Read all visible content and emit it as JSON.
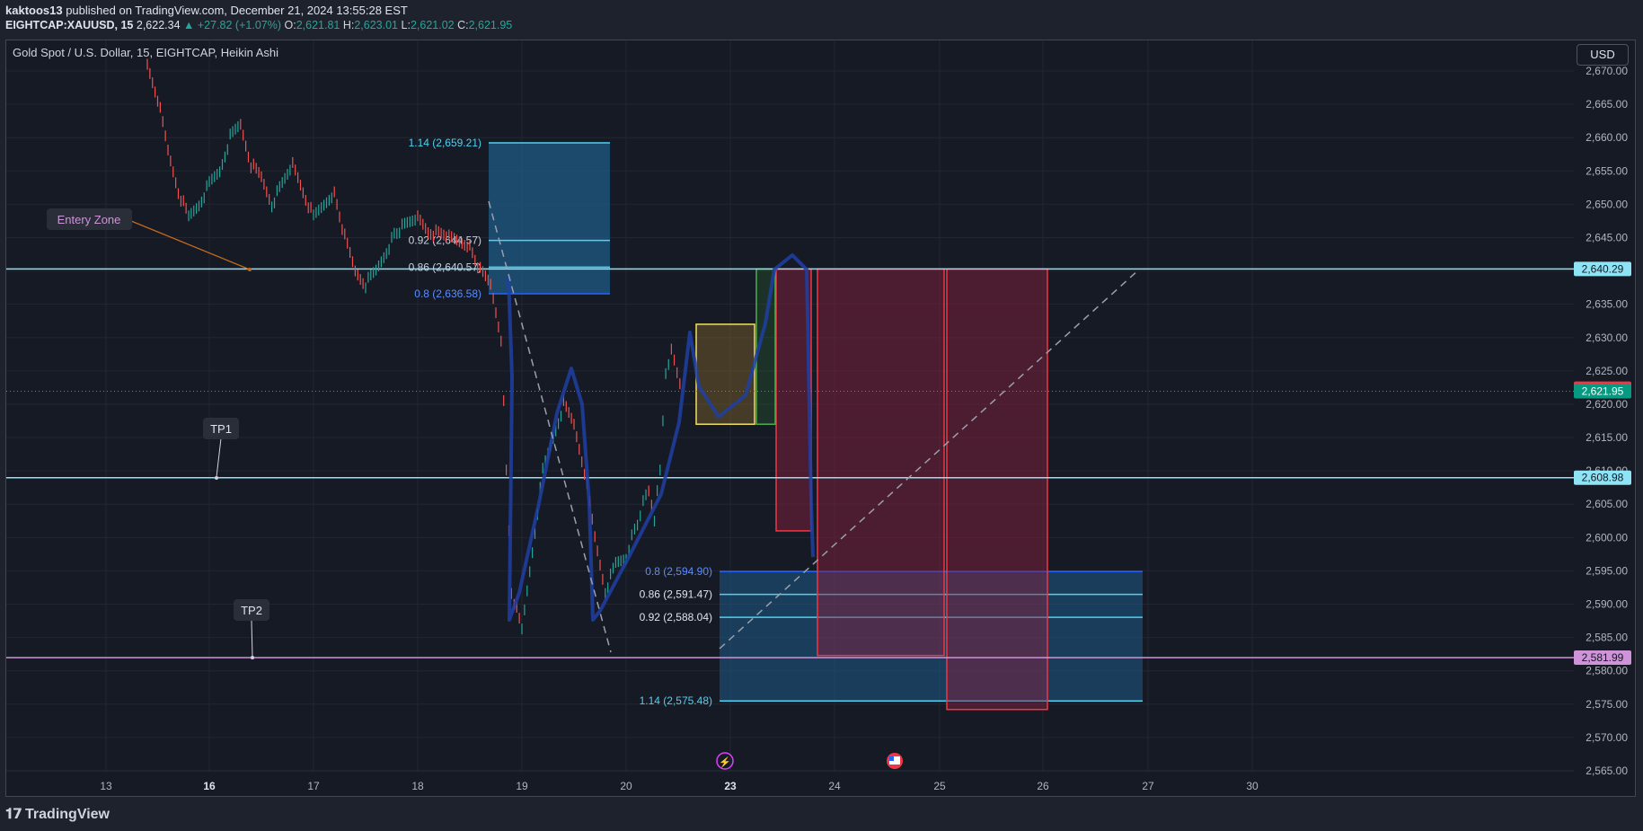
{
  "header": {
    "publisher_line": "kaktoos13 published on TradingView.com, December 21, 2024 13:55:28 EST",
    "publisher_name": "kaktoos13",
    "publisher_rest": " published on TradingView.com, December 21, 2024 13:55:28 EST",
    "symbol": "EIGHTCAP:XAUUSD, 15",
    "last": "2,622.34",
    "change": "▲ +27.82 (+1.07%)",
    "o_label": "O:",
    "o": "2,621.81",
    "h_label": "H:",
    "h": "2,623.01",
    "l_label": "L:",
    "l": "2,621.02",
    "c_label": "C:",
    "c": "2,621.95"
  },
  "pane_title": "Gold Spot / U.S. Dollar, 15, EIGHTCAP, Heikin Ashi",
  "currency_button": "USD",
  "brand": "TradingView",
  "colors": {
    "up": "#26a69a",
    "down": "#ef5350",
    "bg": "#161a25",
    "grid": "#232632",
    "hline": "#8ee3f5",
    "tp2line": "#ce93d8",
    "fibFill": "#1e5b86",
    "fibLine": "#4fd1f0",
    "fibBlue": "#2962ff",
    "redBox": "#f23645",
    "sketch": "#1e3fa3"
  },
  "chart_data": {
    "type": "candlestick",
    "style": "Heikin Ashi",
    "symbol": "XAUUSD",
    "timeframe": "15",
    "x_ticks": [
      "13",
      "16",
      "17",
      "18",
      "19",
      "20",
      "23",
      "24",
      "25",
      "26",
      "27",
      "30"
    ],
    "y_ticks": [
      "2,565.00",
      "2,570.00",
      "2,575.00",
      "2,580.00",
      "2,585.00",
      "2,590.00",
      "2,595.00",
      "2,600.00",
      "2,605.00",
      "2,610.00",
      "2,615.00",
      "2,620.00",
      "2,625.00",
      "2,630.00",
      "2,635.00",
      "2,640.00",
      "2,645.00",
      "2,650.00",
      "2,655.00",
      "2,660.00",
      "2,665.00",
      "2,670.00"
    ],
    "ylim": [
      2565,
      2671
    ],
    "grid": true,
    "price_badges": [
      {
        "price": 2640.29,
        "label": "2,640.29",
        "color": "#8ee3f5",
        "text": "#131722"
      },
      {
        "price": 2622.34,
        "label": "2,622.34",
        "color": "#f23645",
        "text": "#ffffff"
      },
      {
        "price": 2621.95,
        "label": "2,621.95",
        "color": "#089981",
        "text": "#ffffff"
      },
      {
        "price": 2608.98,
        "label": "2,608.98",
        "color": "#8ee3f5",
        "text": "#131722"
      },
      {
        "price": 2581.99,
        "label": "2,581.99",
        "color": "#ce93d8",
        "text": "#131722"
      }
    ],
    "horizontal_lines": [
      {
        "price": 2640.29,
        "color": "#8ee3f5"
      },
      {
        "price": 2608.98,
        "color": "#8ee3f5"
      },
      {
        "price": 2581.99,
        "color": "#ce93d8"
      }
    ],
    "fib_upper": [
      {
        "ratio": "1.14 (2,659.21)",
        "price": 2659.21
      },
      {
        "ratio": "0.92 (2,644.57)",
        "price": 2644.57
      },
      {
        "ratio": "0.86 (2,640.57)",
        "price": 2640.57
      },
      {
        "ratio": "0.8 (2,636.58)",
        "price": 2636.58
      }
    ],
    "fib_lower": [
      {
        "ratio": "0.8 (2,594.90)",
        "price": 2594.9
      },
      {
        "ratio": "0.86 (2,591.47)",
        "price": 2591.47
      },
      {
        "ratio": "0.92 (2,588.04)",
        "price": 2588.04
      },
      {
        "ratio": "1.14 (2,575.48)",
        "price": 2575.48
      }
    ],
    "annotations": [
      {
        "text": "Entery Zone",
        "price": 2640.29
      },
      {
        "text": "TP1",
        "price": 2608.98
      },
      {
        "text": "TP2",
        "price": 2581.99
      }
    ],
    "path": [
      [
        "13.4",
        2671
      ],
      [
        "13.5",
        2666
      ],
      [
        "13.6",
        2658
      ],
      [
        "13.7",
        2652
      ],
      [
        "13.8",
        2648
      ],
      [
        "13.9",
        2650
      ],
      [
        "16.0",
        2653
      ],
      [
        "16.1",
        2655
      ],
      [
        "16.2",
        2660
      ],
      [
        "16.3",
        2662
      ],
      [
        "16.4",
        2656
      ],
      [
        "16.5",
        2654
      ],
      [
        "16.6",
        2650
      ],
      [
        "16.8",
        2656
      ],
      [
        "16.9",
        2652
      ],
      [
        "17.0",
        2648
      ],
      [
        "17.2",
        2652
      ],
      [
        "17.3",
        2645
      ],
      [
        "17.4",
        2640
      ],
      [
        "17.5",
        2638
      ],
      [
        "17.6",
        2640
      ],
      [
        "17.8",
        2646
      ],
      [
        "18.0",
        2648
      ],
      [
        "18.1",
        2646
      ],
      [
        "18.3",
        2645
      ],
      [
        "18.5",
        2644
      ],
      [
        "18.6",
        2640
      ],
      [
        "18.7",
        2638
      ],
      [
        "18.8",
        2630
      ],
      [
        "18.85",
        2610
      ],
      [
        "18.9",
        2592
      ],
      [
        "19.0",
        2586
      ],
      [
        "19.1",
        2598
      ],
      [
        "19.2",
        2610
      ],
      [
        "19.3",
        2615
      ],
      [
        "19.4",
        2620
      ],
      [
        "19.5",
        2617
      ],
      [
        "19.6",
        2610
      ],
      [
        "19.7",
        2600
      ],
      [
        "19.8",
        2592
      ],
      [
        "19.9",
        2596
      ],
      [
        "20.0",
        2597
      ],
      [
        "20.1",
        2600
      ],
      [
        "20.2",
        2602
      ],
      [
        "20.3",
        2605
      ],
      [
        "20.4",
        2607
      ],
      [
        "20.5",
        2603
      ],
      [
        "20.6",
        2610
      ],
      [
        "20.7",
        2625
      ],
      [
        "20.8",
        2628
      ],
      [
        "20.9",
        2625
      ],
      [
        "21.0",
        2621.95
      ]
    ]
  }
}
